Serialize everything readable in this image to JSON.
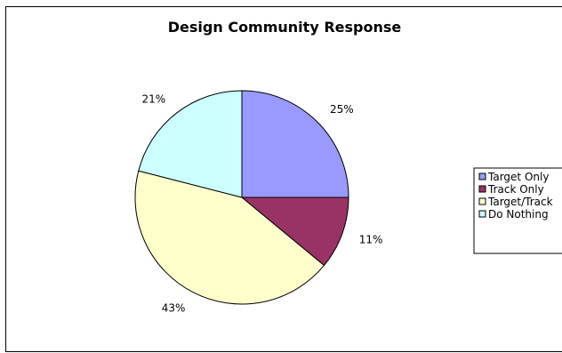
{
  "chart_data": {
    "type": "pie",
    "title": "Design Community Response",
    "slices": [
      {
        "label": "Target Only",
        "value": 25,
        "display": "25%",
        "color": "#9999ff"
      },
      {
        "label": "Track Only",
        "value": 11,
        "display": "11%",
        "color": "#993366"
      },
      {
        "label": "Target/Track",
        "value": 43,
        "display": "43%",
        "color": "#ffffcc"
      },
      {
        "label": "Do Nothing",
        "value": 21,
        "display": "21%",
        "color": "#ccffff"
      }
    ],
    "legend_position": "right",
    "start": "top, clockwise"
  }
}
